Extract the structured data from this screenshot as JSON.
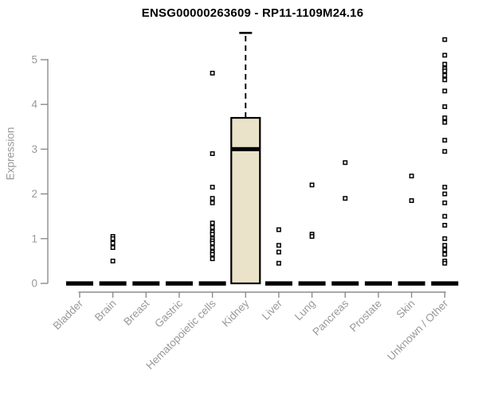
{
  "chart_data": {
    "type": "boxplot",
    "title": "ENSG00000263609 - RP11-1109M24.16",
    "ylabel": "Expression",
    "xlabel": "",
    "ylim": [
      0,
      5.6
    ],
    "y_ticks": [
      0,
      1,
      2,
      3,
      4,
      5
    ],
    "grid": false,
    "legend": false,
    "categories": [
      "Bladder",
      "Brain",
      "Breast",
      "Gastric",
      "Hematopoietic cells",
      "Kidney",
      "Liver",
      "Lung",
      "Pancreas",
      "Prostate",
      "Skin",
      "Unknown / Other"
    ],
    "groups": [
      {
        "label": "Bladder",
        "box": {
          "low": 0,
          "q1": 0,
          "median": 0,
          "q3": 0,
          "high": 0
        },
        "points": []
      },
      {
        "label": "Brain",
        "box": {
          "low": 0,
          "q1": 0,
          "median": 0,
          "q3": 0,
          "high": 0
        },
        "points": [
          1.05,
          1.0,
          0.9,
          0.8,
          0.5
        ]
      },
      {
        "label": "Breast",
        "box": {
          "low": 0,
          "q1": 0,
          "median": 0,
          "q3": 0,
          "high": 0
        },
        "points": []
      },
      {
        "label": "Gastric",
        "box": {
          "low": 0,
          "q1": 0,
          "median": 0,
          "q3": 0,
          "high": 0
        },
        "points": []
      },
      {
        "label": "Hematopoietic cells",
        "box": {
          "low": 0,
          "q1": 0,
          "median": 0,
          "q3": 0,
          "high": 0
        },
        "points": [
          4.7,
          2.9,
          2.15,
          1.9,
          1.8,
          1.35,
          1.25,
          1.15,
          1.1,
          1.0,
          0.95,
          0.9,
          0.8,
          0.7,
          0.65,
          0.55
        ]
      },
      {
        "label": "Kidney",
        "box": {
          "low": 0,
          "q1": 0,
          "median": 3.0,
          "q3": 3.7,
          "high": 5.6
        },
        "points": []
      },
      {
        "label": "Liver",
        "box": {
          "low": 0,
          "q1": 0,
          "median": 0,
          "q3": 0,
          "high": 0
        },
        "points": [
          1.2,
          0.85,
          0.7,
          0.45
        ]
      },
      {
        "label": "Lung",
        "box": {
          "low": 0,
          "q1": 0,
          "median": 0,
          "q3": 0,
          "high": 0
        },
        "points": [
          2.2,
          1.1,
          1.05
        ]
      },
      {
        "label": "Pancreas",
        "box": {
          "low": 0,
          "q1": 0,
          "median": 0,
          "q3": 0,
          "high": 0
        },
        "points": [
          2.7,
          1.9
        ]
      },
      {
        "label": "Prostate",
        "box": {
          "low": 0,
          "q1": 0,
          "median": 0,
          "q3": 0,
          "high": 0
        },
        "points": []
      },
      {
        "label": "Skin",
        "box": {
          "low": 0,
          "q1": 0,
          "median": 0,
          "q3": 0,
          "high": 0
        },
        "points": [
          2.4,
          1.85
        ]
      },
      {
        "label": "Unknown / Other",
        "box": {
          "low": 0,
          "q1": 0,
          "median": 0,
          "q3": 0,
          "high": 0
        },
        "points": [
          5.45,
          5.1,
          4.9,
          4.8,
          4.75,
          4.65,
          4.55,
          4.3,
          3.95,
          3.7,
          3.6,
          3.2,
          2.95,
          2.15,
          2.0,
          1.8,
          1.5,
          1.3,
          1.0,
          0.85,
          0.75,
          0.65,
          0.5,
          0.45
        ]
      }
    ],
    "colors": {
      "background": "#ffffff",
      "title_color": "#000000",
      "axis_color": "#8c8c8c",
      "tick_label_color": "#999999",
      "box_fill": "#eae3c9",
      "box_stroke": "#000000",
      "median_color": "#000000",
      "whisker_color": "#000000",
      "point_color": "#000000",
      "zero_bar_color": "#000000"
    }
  }
}
